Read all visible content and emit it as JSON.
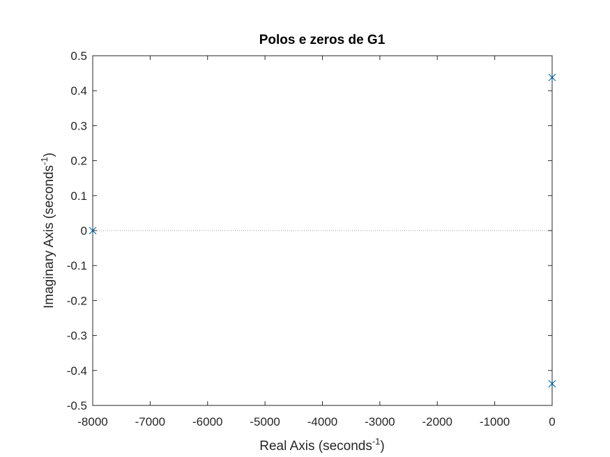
{
  "chart_data": {
    "type": "scatter",
    "title": "Polos e zeros de G1",
    "xlabel": "Real Axis (seconds",
    "xlabel_sup": "-1",
    "xlabel_end": ")",
    "ylabel": "Imaginary Axis (seconds",
    "ylabel_sup": "-1",
    "ylabel_end": ")",
    "xlim": [
      -8000,
      0
    ],
    "ylim": [
      -0.5,
      0.5
    ],
    "xticks": [
      -8000,
      -7000,
      -6000,
      -5000,
      -4000,
      -3000,
      -2000,
      -1000,
      0
    ],
    "yticks": [
      -0.5,
      -0.4,
      -0.3,
      -0.2,
      -0.1,
      0,
      0.1,
      0.2,
      0.3,
      0.4,
      0.5
    ],
    "grid": false,
    "series": [
      {
        "marker": "x",
        "color": "#0072BD",
        "points": [
          {
            "x": -8000,
            "y": 0
          },
          {
            "x": 0,
            "y": 0.438
          },
          {
            "x": 0,
            "y": -0.438
          }
        ]
      }
    ],
    "zero_line_color": "#999999"
  }
}
